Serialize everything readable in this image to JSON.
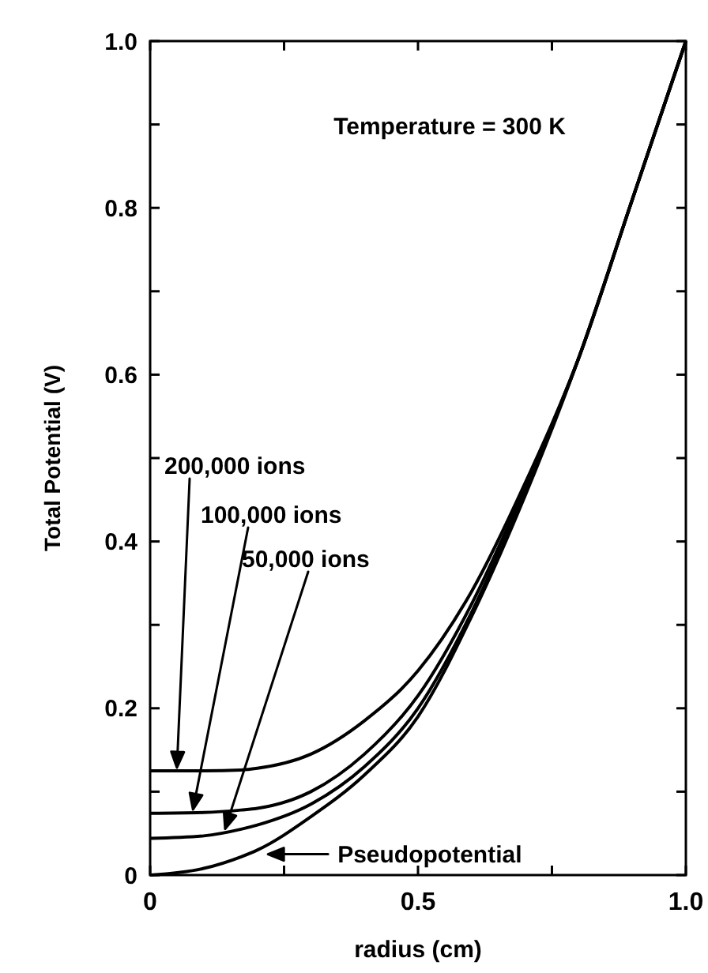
{
  "chart_data": {
    "type": "line",
    "xlabel": "radius (cm)",
    "ylabel": "Total Potential (V)",
    "annotations": [
      "Temperature = 300 K",
      "200,000 ions",
      "100,000 ions",
      "50,000 ions",
      {
        "text": "Pseudopotential",
        "x": 0.22,
        "y": 0.025
      }
    ],
    "xlim": [
      0,
      1
    ],
    "xticks": [
      0,
      {
        "value": 0.25,
        "label": null
      },
      0.5,
      {
        "value": 0.75,
        "label": null
      },
      {
        "value": 1,
        "label": "1.0"
      }
    ],
    "ylim": [
      0,
      1
    ],
    "yticks": [
      0,
      {
        "value": 0.1,
        "label": null
      },
      0.2,
      {
        "value": 0.3,
        "label": null
      },
      0.4,
      {
        "value": 0.5,
        "label": null
      },
      0.6,
      {
        "value": 0.7,
        "label": null
      },
      0.8,
      {
        "value": 0.9,
        "label": null
      },
      {
        "value": 1,
        "label": "1.0"
      }
    ],
    "x": [
      0,
      0.1,
      0.17,
      0.2,
      0.3,
      0.4,
      0.5,
      0.6,
      0.7,
      0.8,
      0.9,
      1.0
    ],
    "grid": false,
    "marker": "none",
    "line_style": "solid",
    "series": [
      {
        "color": "#000000",
        "values": [
          0.125,
          0.125,
          0.126,
          0.128,
          0.145,
          0.185,
          0.245,
          0.34,
          0.47,
          0.62,
          0.81,
          1.0
        ]
      },
      {
        "color": "#000000",
        "values": [
          0.074,
          0.075,
          0.078,
          0.08,
          0.1,
          0.145,
          0.215,
          0.325,
          0.465,
          0.62,
          0.81,
          1.0
        ]
      },
      {
        "color": "#000000",
        "values": [
          0.044,
          0.047,
          0.055,
          0.06,
          0.085,
          0.13,
          0.2,
          0.315,
          0.46,
          0.62,
          0.81,
          1.0
        ]
      },
      {
        "color": "#000000",
        "values": [
          0,
          0.008,
          0.022,
          0.03,
          0.07,
          0.12,
          0.19,
          0.31,
          0.455,
          0.62,
          0.81,
          1.0
        ]
      }
    ]
  }
}
